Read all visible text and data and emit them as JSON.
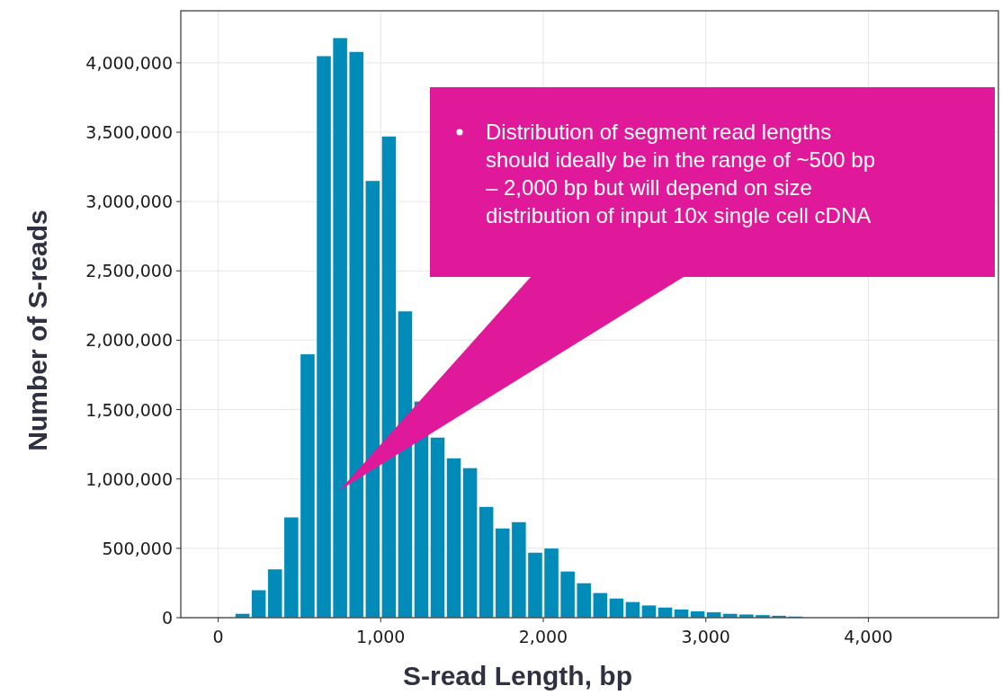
{
  "chart_data": {
    "type": "histogram",
    "xlabel": "S-read Length, bp",
    "ylabel": "Number of S-reads",
    "bins": [
      100,
      200,
      300,
      400,
      500,
      600,
      700,
      800,
      900,
      1000,
      1100,
      1200,
      1300,
      1400,
      1500,
      1600,
      1700,
      1800,
      1900,
      2000,
      2100,
      2200,
      2300,
      2400,
      2500,
      2600,
      2700,
      2800,
      2900,
      3000,
      3100,
      3200,
      3300,
      3400,
      3500,
      3600
    ],
    "values": [
      30000,
      200000,
      350000,
      725000,
      1900000,
      4050000,
      4180000,
      4080000,
      3150000,
      3470000,
      2210000,
      1560000,
      1300000,
      1150000,
      1080000,
      800000,
      645000,
      690000,
      470000,
      500000,
      335000,
      250000,
      180000,
      140000,
      115000,
      90000,
      75000,
      60000,
      47000,
      40000,
      30000,
      25000,
      20000,
      15000,
      10000
    ],
    "color": "#008bb8",
    "xlim": [
      -230,
      4800
    ],
    "ylim": [
      0,
      4375000
    ],
    "xticks": [
      {
        "value": 0,
        "label": "0"
      },
      {
        "value": 1000,
        "label": "1,000"
      },
      {
        "value": 2000,
        "label": "2,000"
      },
      {
        "value": 3000,
        "label": "3,000"
      },
      {
        "value": 4000,
        "label": "4,000"
      }
    ],
    "yticks": [
      {
        "value": 0,
        "label": "0"
      },
      {
        "value": 500000,
        "label": "500,000"
      },
      {
        "value": 1000000,
        "label": "1,000,000"
      },
      {
        "value": 1500000,
        "label": "1,500,000"
      },
      {
        "value": 2000000,
        "label": "2,000,000"
      },
      {
        "value": 2500000,
        "label": "2,500,000"
      },
      {
        "value": 3000000,
        "label": "3,000,000"
      },
      {
        "value": 3500000,
        "label": "3,500,000"
      },
      {
        "value": 4000000,
        "label": "4,000,000"
      }
    ],
    "grid": true,
    "annotations": [
      "Distribution of segment read lengths should ideally be in the range of ~500 bp – 2,000 bp but will depend on size distribution of input 10x single cell cDNA"
    ]
  }
}
